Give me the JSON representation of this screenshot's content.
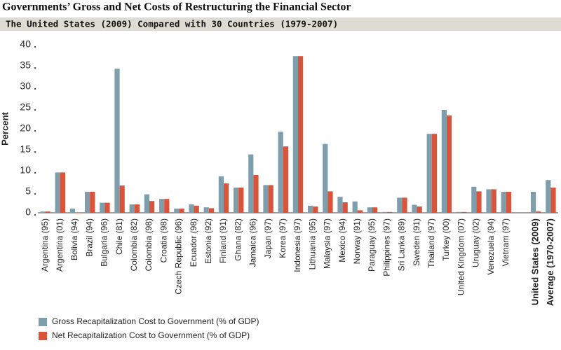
{
  "chart_data": {
    "type": "bar",
    "title": "Governments’ Gross and Net Costs of Restructuring the Financial Sector",
    "subtitle": "The United States (2009) Compared with 30 Countries (1979-2007)",
    "y_label": "Percent",
    "categories": [
      "Argentina (95)",
      "Argentina (01)",
      "Bolivia (94)",
      "Brazil (94)",
      "Bulgaria (96)",
      "Chile (81)",
      "Colombia (82)",
      "Colombia (98)",
      "Croatia (98)",
      "Czech Republic (96)",
      "Ecuador (98)",
      "Estonia (92)",
      "Finland (91)",
      "Ghana (82)",
      "Jamaica (96)",
      "Japan (97)",
      "Korea (97)",
      "Indonesia (97)",
      "Lithuania (95)",
      "Malaysia (97)",
      "Mexico (94)",
      "Norway (91)",
      "Paraguay (95)",
      "Philippines (97)",
      "Sri Lanka (89)",
      "Sweden (91)",
      "Thailand (97)",
      "Turkey (00)",
      "United Kingdom (07)",
      "Uruguay (02)",
      "Venezuela (94)",
      "Vietnam (97)",
      null,
      "United States (2009)",
      "Average (1970-2007)"
    ],
    "series": [
      {
        "name": "Gross Recapitalization Cost to Government (% of GDP)",
        "color": "#7f9eab",
        "values": [
          0.3,
          9.6,
          1.0,
          5.0,
          2.4,
          34.3,
          2.0,
          4.4,
          3.3,
          1.0,
          2.0,
          1.3,
          8.7,
          6.0,
          13.9,
          6.6,
          19.3,
          37.3,
          1.7,
          16.4,
          3.8,
          2.7,
          1.3,
          0.2,
          3.6,
          1.9,
          18.8,
          24.5,
          0.2,
          6.2,
          5.6,
          5.0,
          null,
          5.0,
          7.8
        ]
      },
      {
        "name": "Net Recapitalization Cost to Government (% of GDP)",
        "color": "#d9543a",
        "values": [
          0.3,
          9.6,
          0.0,
          5.0,
          2.4,
          6.5,
          2.0,
          2.8,
          3.3,
          1.0,
          1.7,
          1.1,
          7.0,
          6.0,
          9.0,
          6.6,
          15.8,
          37.3,
          1.5,
          5.1,
          2.5,
          0.6,
          1.3,
          0.2,
          3.6,
          1.5,
          18.8,
          23.2,
          0.2,
          5.1,
          5.6,
          5.0,
          null,
          0.3,
          6.0
        ]
      }
    ],
    "ylim": [
      0,
      40
    ],
    "yticks": [
      0,
      5,
      10,
      15,
      20,
      25,
      30,
      35,
      40
    ]
  }
}
